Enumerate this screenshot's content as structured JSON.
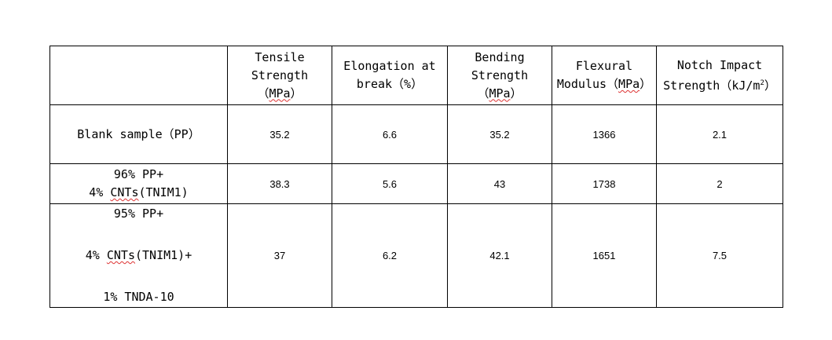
{
  "headers": [
    {
      "pre": "",
      "lines": [
        "Tensile",
        "Strength"
      ],
      "unit_open": "（",
      "unit": "MPa",
      "unit_close": "）"
    },
    {
      "lines": [
        "Elongation at",
        "break（%）"
      ]
    },
    {
      "lines": [
        "Bending",
        "Strength"
      ],
      "unit_open": "（",
      "unit": "MPa",
      "unit_close": "）"
    },
    {
      "lines": [
        "Flexural"
      ],
      "line2_pre": "Modulus（",
      "unit": "MPa",
      "unit_close": "）"
    },
    {
      "lines": [
        "Notch Impact"
      ],
      "line2_pre": "Strength（kJ/m",
      "sup": "2",
      "unit_close": "）"
    }
  ],
  "rows": [
    {
      "label_lines": [
        "Blank sample（PP）"
      ],
      "values": [
        "35.2",
        "6.6",
        "35.2",
        "1366",
        "2.1"
      ]
    },
    {
      "label_lines": [
        "96% PP+"
      ],
      "label_line2_pre": "4% ",
      "label_line2_squig": "CNTs",
      "label_line2_post": "(TNIM1)",
      "values": [
        "38.3",
        "5.6",
        "43",
        "1738",
        "2"
      ]
    },
    {
      "label_line1": "95% PP+",
      "label_line2_pre": "4% ",
      "label_line2_squig": "CNTs",
      "label_line2_post": "(TNIM1)+",
      "label_line3": "1% TNDA-10",
      "values": [
        "37",
        "6.2",
        "42.1",
        "1651",
        "7.5"
      ]
    }
  ]
}
